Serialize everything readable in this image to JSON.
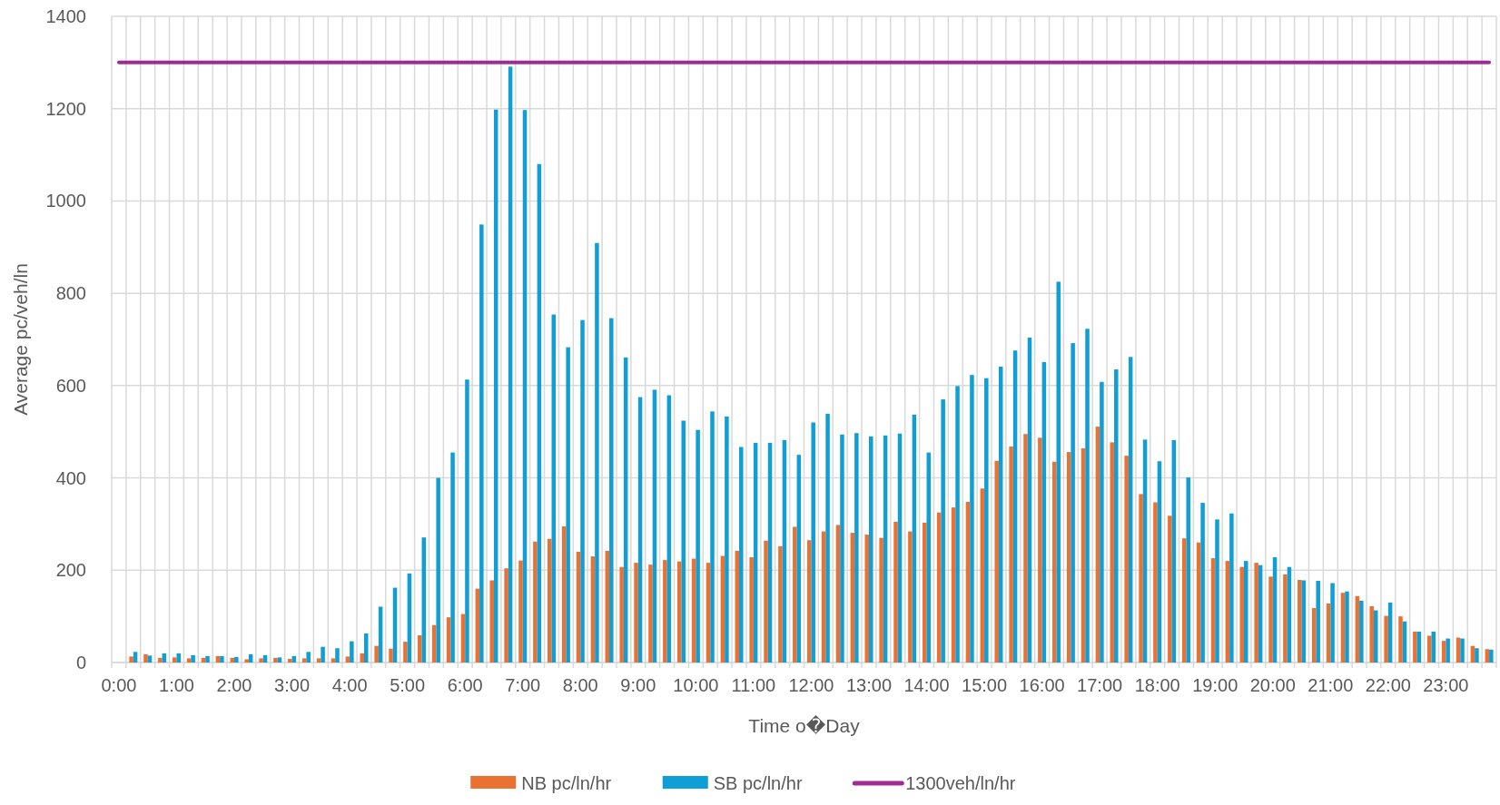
{
  "chart_data": {
    "type": "bar",
    "xlabel": "Time o�Day",
    "ylabel": "Average pc/veh/ln",
    "categories": [
      "0:00",
      null,
      null,
      null,
      "1:00",
      null,
      null,
      null,
      "2:00",
      null,
      null,
      null,
      "3:00",
      null,
      null,
      null,
      "4:00",
      null,
      null,
      null,
      "5:00",
      null,
      null,
      null,
      "6:00",
      null,
      null,
      null,
      "7:00",
      null,
      null,
      null,
      "8:00",
      null,
      null,
      null,
      "9:00",
      null,
      null,
      null,
      "10:00",
      null,
      null,
      null,
      "11:00",
      null,
      null,
      null,
      "12:00",
      null,
      null,
      null,
      "13:00",
      null,
      null,
      null,
      "14:00",
      null,
      null,
      null,
      "15:00",
      null,
      null,
      null,
      "16:00",
      null,
      null,
      null,
      "17:00",
      null,
      null,
      null,
      "18:00",
      null,
      null,
      null,
      "19:00",
      null,
      null,
      null,
      "20:00",
      null,
      null,
      null,
      "21:00",
      null,
      null,
      null,
      "22:00",
      null,
      null,
      null,
      "23:00",
      null,
      null,
      null
    ],
    "series": [
      {
        "name": "NB pc/ln/hr",
        "color": "#e97132",
        "values": [
          null,
          13,
          18,
          10,
          11,
          9,
          10,
          14,
          10,
          7,
          9,
          10,
          8,
          9,
          9,
          9,
          13,
          20,
          36,
          30,
          45,
          59,
          81,
          98,
          105,
          160,
          178,
          204,
          221,
          262,
          268,
          295,
          240,
          230,
          242,
          207,
          216,
          212,
          222,
          219,
          225,
          216,
          231,
          242,
          228,
          264,
          252,
          294,
          265,
          284,
          298,
          281,
          277,
          270,
          305,
          284,
          303,
          325,
          336,
          348,
          377,
          437,
          468,
          495,
          487,
          435,
          456,
          464,
          511,
          477,
          448,
          365,
          347,
          318,
          269,
          260,
          226,
          220,
          207,
          216,
          186,
          191,
          179,
          118,
          128,
          151,
          144,
          122,
          101,
          100,
          67,
          58,
          47,
          54,
          36,
          29
        ]
      },
      {
        "name": "SB pc/ln/hr",
        "color": "#0f9ed5",
        "values": [
          null,
          23,
          15,
          20,
          20,
          16,
          14,
          14,
          12,
          18,
          16,
          11,
          14,
          23,
          34,
          31,
          46,
          63,
          121,
          162,
          193,
          271,
          400,
          455,
          613,
          949,
          1198,
          1291,
          1197,
          1080,
          754,
          683,
          742,
          909,
          746,
          661,
          575,
          591,
          579,
          524,
          504,
          544,
          533,
          467,
          476,
          476,
          482,
          450,
          520,
          539,
          494,
          497,
          490,
          492,
          496,
          537,
          455,
          570,
          599,
          623,
          616,
          641,
          676,
          704,
          651,
          825,
          692,
          723,
          608,
          635,
          662,
          483,
          436,
          482,
          401,
          346,
          310,
          323,
          220,
          211,
          228,
          207,
          178,
          177,
          172,
          154,
          134,
          113,
          130,
          89,
          67,
          67,
          52,
          52,
          31,
          28
        ]
      },
      {
        "name": "1300veh/ln/hr",
        "type": "line",
        "color": "#a02b93",
        "values": [
          1300,
          1300,
          1300,
          1300,
          1300,
          1300,
          1300,
          1300,
          1300,
          1300,
          1300,
          1300,
          1300,
          1300,
          1300,
          1300,
          1300,
          1300,
          1300,
          1300,
          1300,
          1300,
          1300,
          1300,
          1300,
          1300,
          1300,
          1300,
          1300,
          1300,
          1300,
          1300,
          1300,
          1300,
          1300,
          1300,
          1300,
          1300,
          1300,
          1300,
          1300,
          1300,
          1300,
          1300,
          1300,
          1300,
          1300,
          1300,
          1300,
          1300,
          1300,
          1300,
          1300,
          1300,
          1300,
          1300,
          1300,
          1300,
          1300,
          1300,
          1300,
          1300,
          1300,
          1300,
          1300,
          1300,
          1300,
          1300,
          1300,
          1300,
          1300,
          1300,
          1300,
          1300,
          1300,
          1300,
          1300,
          1300,
          1300,
          1300,
          1300,
          1300,
          1300,
          1300,
          1300,
          1300,
          1300,
          1300,
          1300,
          1300,
          1300,
          1300,
          1300,
          1300,
          1300,
          1300
        ]
      }
    ],
    "ylim": [
      0,
      1400
    ],
    "yticks": [
      0,
      200,
      400,
      600,
      800,
      1000,
      1200,
      1400
    ],
    "grid": true,
    "legend": "bottom"
  }
}
